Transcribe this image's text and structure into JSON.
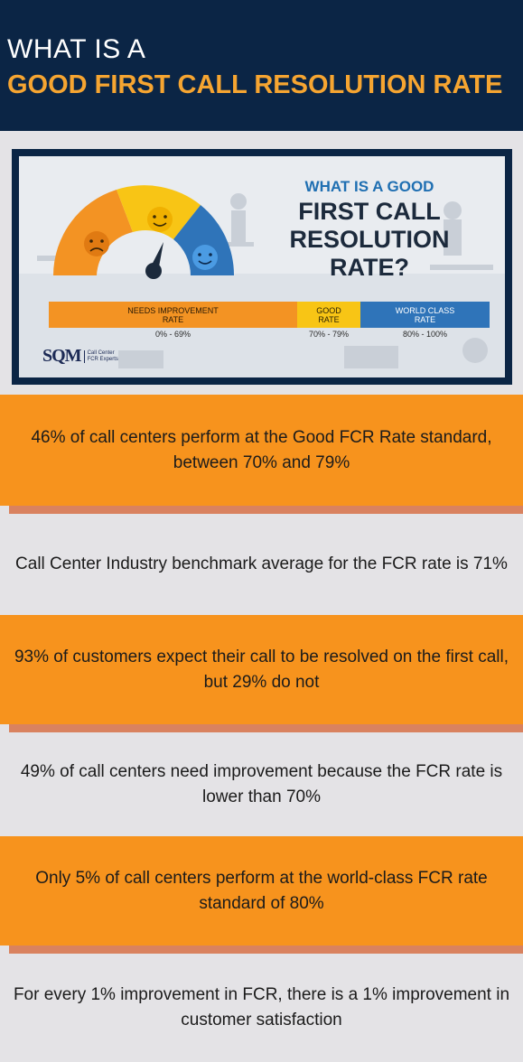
{
  "header": {
    "line1": "WHAT IS A",
    "line2": "GOOD FIRST CALL RESOLUTION RATE"
  },
  "hero": {
    "title_small": "WHAT IS A GOOD",
    "title_big_1": "FIRST CALL",
    "title_big_2": "RESOLUTION",
    "title_big_3": "RATE?",
    "scale": [
      {
        "label": "NEEDS IMPROVEMENT",
        "label2": "RATE",
        "range": "0% - 69%",
        "color": "#f39323"
      },
      {
        "label": "GOOD",
        "label2": "RATE",
        "range": "70% - 79%",
        "color": "#f8c515"
      },
      {
        "label": "WORLD CLASS",
        "label2": "RATE",
        "range": "80% - 100%",
        "color": "#2f74b9"
      }
    ],
    "logo": {
      "mark": "SQM",
      "sub1": "Call Center",
      "sub2": "FCR Experts"
    }
  },
  "facts": [
    {
      "text": "46% of call centers perform at the Good FCR Rate standard, between 70% and 79%"
    },
    {
      "text": "Call Center Industry benchmark average for the FCR rate is 71%"
    },
    {
      "text": "93% of customers expect their call to be resolved on the first call, but 29% do not"
    },
    {
      "text": "49% of call centers need improvement because the FCR rate is lower than 70%"
    },
    {
      "text": "Only 5% of call centers perform at the world-class FCR rate standard of 80%"
    },
    {
      "text": "For every 1% improvement in FCR, there is a 1% improvement in customer satisfaction"
    }
  ]
}
